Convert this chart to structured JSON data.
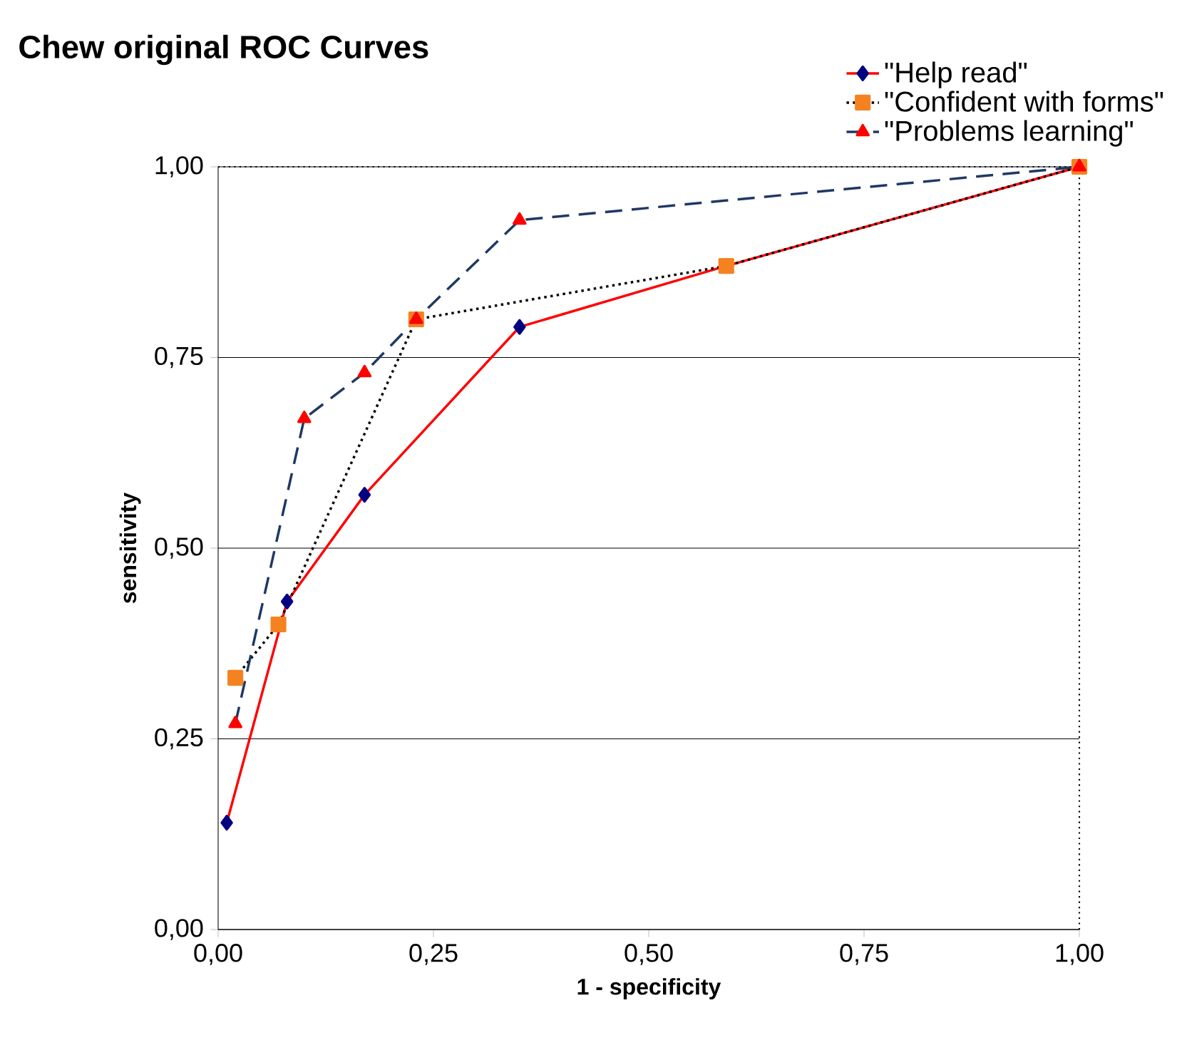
{
  "chart_data": {
    "type": "line",
    "title": "Chew original ROC Curves",
    "xlabel": "1 - specificity",
    "ylabel": "sensitivity",
    "xlim": [
      0,
      1
    ],
    "ylim": [
      0,
      1
    ],
    "xticks": [
      {
        "value": 0,
        "label": "0,00"
      },
      {
        "value": 0.25,
        "label": "0,25"
      },
      {
        "value": 0.5,
        "label": "0,50"
      },
      {
        "value": 0.75,
        "label": "0,75"
      },
      {
        "value": 1,
        "label": "1,00"
      }
    ],
    "yticks": [
      {
        "value": 0,
        "label": "0,00"
      },
      {
        "value": 0.25,
        "label": "0,25"
      },
      {
        "value": 0.5,
        "label": "0,50"
      },
      {
        "value": 0.75,
        "label": "0,75"
      },
      {
        "value": 1,
        "label": "1,00"
      }
    ],
    "grid": "y",
    "legend": "top right",
    "series": [
      {
        "name": "\"Help read\"",
        "color": "#ff0000",
        "marker": "diamond",
        "line_style": "solid",
        "x": [
          0.01,
          0.08,
          0.17,
          0.35,
          0.59,
          1
        ],
        "values": [
          0.14,
          0.43,
          0.57,
          0.79,
          0.87,
          1
        ]
      },
      {
        "name": "\"Confident with forms\"",
        "color": "#000000",
        "marker": "square",
        "line_style": "dotted",
        "x": [
          0.02,
          0.07,
          0.23,
          0.59,
          1
        ],
        "values": [
          0.33,
          0.4,
          0.8,
          0.87,
          1
        ]
      },
      {
        "name": "\"Problems learning\"",
        "color": "#1f3864",
        "marker": "triangle",
        "line_style": "dashed",
        "x": [
          0.02,
          0.1,
          0.17,
          0.23,
          0.35,
          1
        ],
        "values": [
          0.27,
          0.67,
          0.73,
          0.8,
          0.93,
          1
        ]
      }
    ]
  }
}
